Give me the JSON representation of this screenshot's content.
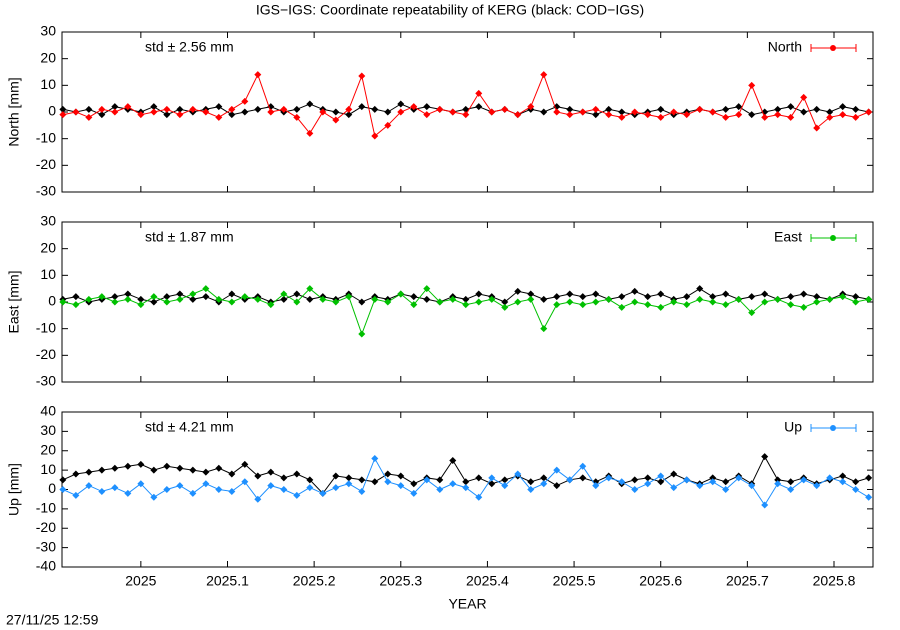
{
  "title": "IGS−IGS: Coordinate repeatability of KERG (black: COD−IGS)",
  "timestamp": "27/11/25 12:59",
  "chart_data": [
    {
      "type": "line",
      "y_label": "North [mm]",
      "annotation": "std ± 2.56 mm",
      "annotation_color": "#ff0000",
      "xlim": [
        2024.909,
        2025.845
      ],
      "xticks": [
        2025,
        2025.1,
        2025.2,
        2025.3,
        2025.4,
        2025.5,
        2025.6,
        2025.7,
        2025.8
      ],
      "show_xtick_labels": false,
      "ylim": [
        -30,
        30
      ],
      "yticks": [
        -30,
        -20,
        -10,
        0,
        10,
        20,
        30
      ],
      "legend": "top-right",
      "x": [
        2024.91,
        2024.925,
        2024.94,
        2024.955,
        2024.97,
        2024.985,
        2025,
        2025.015,
        2025.03,
        2025.045,
        2025.06,
        2025.075,
        2025.09,
        2025.105,
        2025.12,
        2025.135,
        2025.15,
        2025.165,
        2025.18,
        2025.195,
        2025.21,
        2025.225,
        2025.24,
        2025.255,
        2025.27,
        2025.285,
        2025.3,
        2025.315,
        2025.33,
        2025.345,
        2025.36,
        2025.375,
        2025.39,
        2025.405,
        2025.42,
        2025.435,
        2025.45,
        2025.465,
        2025.48,
        2025.495,
        2025.51,
        2025.525,
        2025.54,
        2025.555,
        2025.57,
        2025.585,
        2025.6,
        2025.615,
        2025.63,
        2025.645,
        2025.66,
        2025.675,
        2025.69,
        2025.705,
        2025.72,
        2025.735,
        2025.75,
        2025.765,
        2025.78,
        2025.795,
        2025.81,
        2025.825,
        2025.84
      ],
      "series": [
        {
          "color": "#000000",
          "values": [
            1,
            0,
            1,
            -1,
            2,
            1,
            0,
            2,
            -1,
            1,
            0,
            1,
            2,
            -1,
            0,
            1,
            2,
            0,
            1,
            3,
            1,
            0,
            -1,
            2,
            1,
            0,
            3,
            1,
            2,
            1,
            0,
            1,
            2,
            0,
            1,
            -1,
            1,
            0,
            2,
            1,
            0,
            -1,
            1,
            0,
            -1,
            0,
            1,
            -1,
            0,
            1,
            0,
            1,
            2,
            -1,
            0,
            1,
            2,
            0,
            1,
            0,
            2,
            1,
            0
          ]
        },
        {
          "name": "North",
          "color": "#ff0000",
          "values": [
            -1,
            0,
            -2,
            1,
            0,
            2,
            -1,
            0,
            1,
            -1,
            1,
            0,
            -2,
            1,
            4,
            14,
            0,
            1,
            -2,
            -8,
            0,
            -3,
            1,
            13.5,
            -9,
            -5,
            0,
            2,
            -1,
            1,
            0,
            -1,
            7,
            0,
            1,
            -1,
            2,
            14,
            0,
            -1,
            0,
            1,
            -1,
            -2,
            0,
            -1,
            -2,
            0,
            -1,
            1,
            0,
            -2,
            -1,
            10,
            -2,
            -1,
            -2,
            5.5,
            -6,
            -2,
            -1,
            -2,
            0
          ]
        }
      ]
    },
    {
      "type": "line",
      "y_label": "East [mm]",
      "annotation": "std ± 1.87 mm",
      "annotation_color": "#00c000",
      "xlim": [
        2024.909,
        2025.845
      ],
      "xticks": [
        2025,
        2025.1,
        2025.2,
        2025.3,
        2025.4,
        2025.5,
        2025.6,
        2025.7,
        2025.8
      ],
      "show_xtick_labels": false,
      "ylim": [
        -30,
        30
      ],
      "yticks": [
        -30,
        -20,
        -10,
        0,
        10,
        20,
        30
      ],
      "legend": "top-right",
      "x": [
        2024.91,
        2024.925,
        2024.94,
        2024.955,
        2024.97,
        2024.985,
        2025,
        2025.015,
        2025.03,
        2025.045,
        2025.06,
        2025.075,
        2025.09,
        2025.105,
        2025.12,
        2025.135,
        2025.15,
        2025.165,
        2025.18,
        2025.195,
        2025.21,
        2025.225,
        2025.24,
        2025.255,
        2025.27,
        2025.285,
        2025.3,
        2025.315,
        2025.33,
        2025.345,
        2025.36,
        2025.375,
        2025.39,
        2025.405,
        2025.42,
        2025.435,
        2025.45,
        2025.465,
        2025.48,
        2025.495,
        2025.51,
        2025.525,
        2025.54,
        2025.555,
        2025.57,
        2025.585,
        2025.6,
        2025.615,
        2025.63,
        2025.645,
        2025.66,
        2025.675,
        2025.69,
        2025.705,
        2025.72,
        2025.735,
        2025.75,
        2025.765,
        2025.78,
        2025.795,
        2025.81,
        2025.825,
        2025.84
      ],
      "series": [
        {
          "color": "#000000",
          "values": [
            1,
            2,
            0,
            1,
            2,
            3,
            1,
            0,
            2,
            3,
            1,
            2,
            0,
            3,
            1,
            2,
            0,
            1,
            3,
            1,
            2,
            1,
            3,
            0,
            2,
            1,
            3,
            2,
            1,
            0,
            2,
            1,
            3,
            2,
            0,
            4,
            3,
            1,
            2,
            3,
            2,
            3,
            1,
            2,
            4,
            2,
            3,
            1,
            2,
            5,
            2,
            3,
            1,
            2,
            3,
            1,
            2,
            3,
            2,
            1,
            3,
            2,
            1
          ]
        },
        {
          "name": "East",
          "color": "#00c000",
          "values": [
            0,
            -1,
            1,
            2,
            0,
            1,
            -1,
            2,
            0,
            1,
            3,
            5,
            1,
            0,
            2,
            1,
            -1,
            3,
            0,
            5,
            1,
            0,
            2,
            -12,
            1,
            0,
            3,
            -1,
            5,
            0,
            1,
            -1,
            0,
            1,
            -2,
            0,
            1,
            -10,
            -1,
            0,
            -1,
            0,
            1,
            -2,
            0,
            -1,
            -2,
            0,
            -1,
            1,
            0,
            -1,
            1,
            -4,
            0,
            1,
            -1,
            -2,
            0,
            1,
            2,
            0,
            1
          ]
        }
      ]
    },
    {
      "type": "line",
      "y_label": "Up [mm]",
      "annotation": "std ± 4.21 mm",
      "annotation_color": "#1e90ff",
      "x_label": "YEAR",
      "xlim": [
        2024.909,
        2025.845
      ],
      "xticks": [
        2025,
        2025.1,
        2025.2,
        2025.3,
        2025.4,
        2025.5,
        2025.6,
        2025.7,
        2025.8
      ],
      "show_xtick_labels": true,
      "ylim": [
        -40,
        40
      ],
      "yticks": [
        -40,
        -30,
        -20,
        -10,
        0,
        10,
        20,
        30,
        40
      ],
      "legend": "top-right",
      "x": [
        2024.91,
        2024.925,
        2024.94,
        2024.955,
        2024.97,
        2024.985,
        2025,
        2025.015,
        2025.03,
        2025.045,
        2025.06,
        2025.075,
        2025.09,
        2025.105,
        2025.12,
        2025.135,
        2025.15,
        2025.165,
        2025.18,
        2025.195,
        2025.21,
        2025.225,
        2025.24,
        2025.255,
        2025.27,
        2025.285,
        2025.3,
        2025.315,
        2025.33,
        2025.345,
        2025.36,
        2025.375,
        2025.39,
        2025.405,
        2025.42,
        2025.435,
        2025.45,
        2025.465,
        2025.48,
        2025.495,
        2025.51,
        2025.525,
        2025.54,
        2025.555,
        2025.57,
        2025.585,
        2025.6,
        2025.615,
        2025.63,
        2025.645,
        2025.66,
        2025.675,
        2025.69,
        2025.705,
        2025.72,
        2025.735,
        2025.75,
        2025.765,
        2025.78,
        2025.795,
        2025.81,
        2025.825,
        2025.84
      ],
      "series": [
        {
          "color": "#000000",
          "values": [
            5,
            8,
            9,
            10,
            11,
            12,
            13,
            10,
            12,
            11,
            10,
            9,
            11,
            8,
            13,
            7,
            9,
            6,
            8,
            5,
            -2,
            7,
            6,
            5,
            4,
            8,
            7,
            3,
            6,
            5,
            15,
            4,
            6,
            3,
            5,
            7,
            4,
            6,
            2,
            5,
            6,
            4,
            7,
            3,
            5,
            6,
            4,
            8,
            5,
            3,
            6,
            4,
            7,
            3,
            17,
            5,
            4,
            6,
            3,
            5,
            7,
            4,
            6
          ]
        },
        {
          "name": "Up",
          "color": "#1e90ff",
          "values": [
            0,
            -3,
            2,
            -1,
            1,
            -2,
            3,
            -4,
            0,
            2,
            -2,
            3,
            0,
            -1,
            4,
            -5,
            2,
            0,
            -3,
            1,
            -2,
            1,
            3,
            -1,
            16,
            4,
            2,
            -2,
            5,
            0,
            3,
            1,
            -4,
            6,
            2,
            8,
            0,
            3,
            10,
            5,
            12,
            2,
            6,
            4,
            0,
            3,
            7,
            1,
            5,
            2,
            4,
            0,
            6,
            2,
            -8,
            3,
            0,
            5,
            2,
            6,
            4,
            0,
            -4
          ]
        }
      ]
    }
  ]
}
